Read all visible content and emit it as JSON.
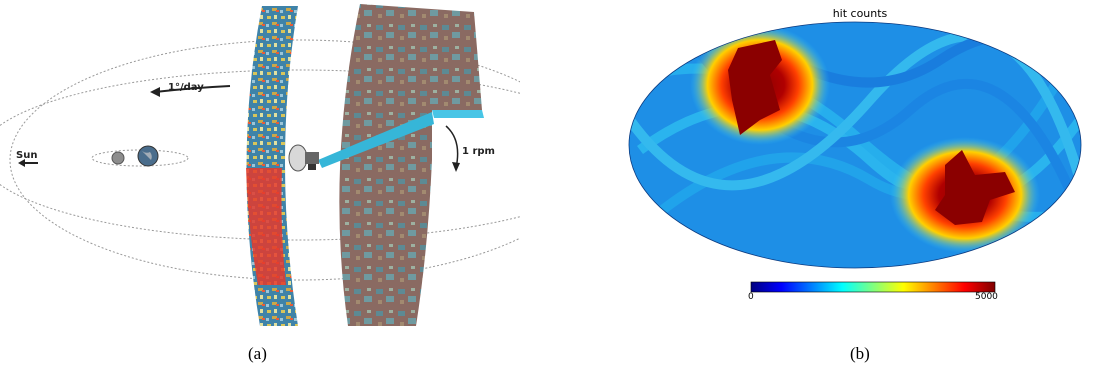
{
  "panel_a": {
    "sun_label": "Sun",
    "orbit_rate_label": "1°/day",
    "spin_rate_label": "1 rpm",
    "caption": "(a)"
  },
  "panel_b": {
    "title": "hit counts",
    "colorbar": {
      "min_label": "0",
      "max_label": "5000",
      "colormap": "jet"
    },
    "caption": "(b)"
  }
}
